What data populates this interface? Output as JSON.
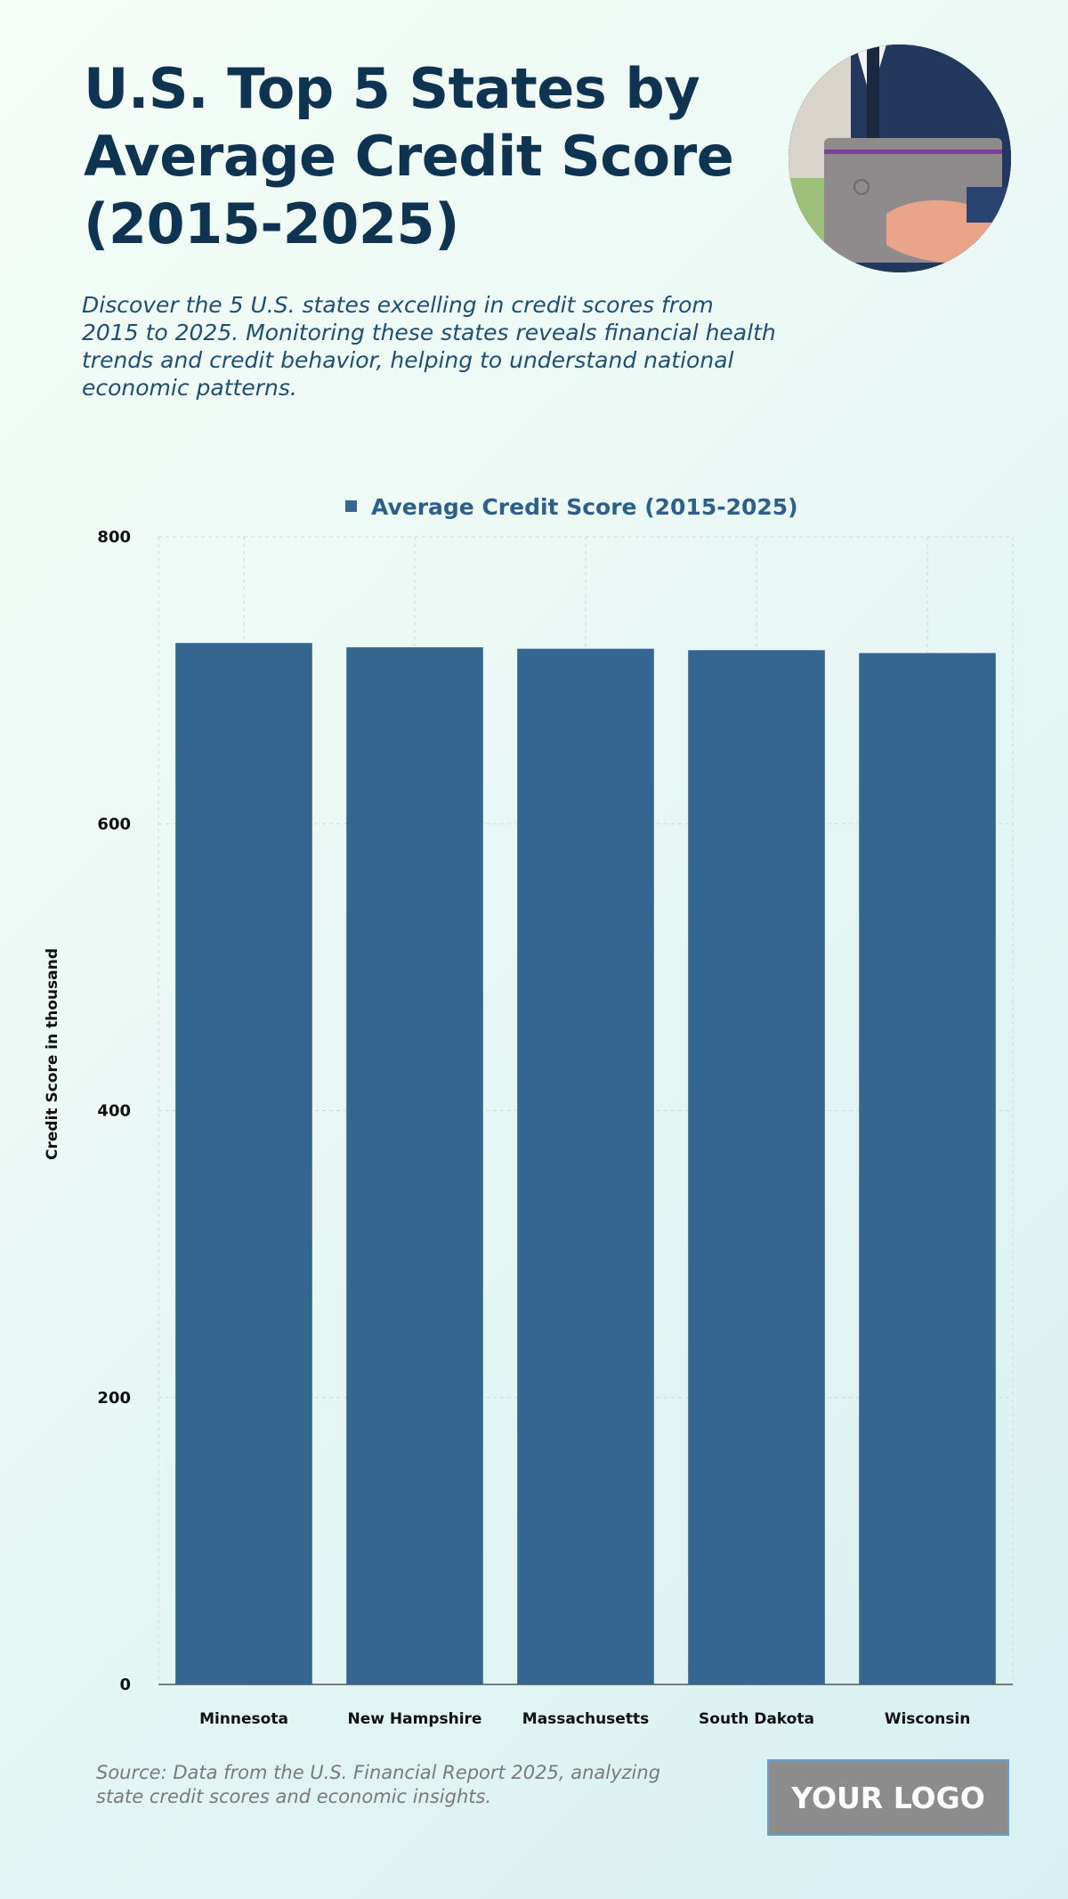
{
  "header": {
    "title": "U.S. Top 5 States by Average Credit Score (2015-2025)",
    "subtitle": "Discover the 5 U.S. states excelling in credit scores from 2015 to 2025. Monitoring these states reveals financial health trends and credit behavior, helping to understand national economic patterns."
  },
  "chart_data": {
    "type": "bar",
    "title": "",
    "legend": [
      "Average Credit Score (2015-2025)"
    ],
    "categories": [
      "Minnesota",
      "New Hampshire",
      "Massachusetts",
      "South Dakota",
      "Wisconsin"
    ],
    "series": [
      {
        "name": "Average Credit Score (2015-2025)",
        "values": [
          726,
          723,
          722,
          721,
          719
        ]
      }
    ],
    "xlabel": "",
    "ylabel": "Credit Score in thousand",
    "ylim": [
      0,
      800
    ],
    "yticks": [
      0,
      200,
      400,
      600,
      800
    ],
    "grid": true,
    "legend_position": "top-center",
    "colors": {
      "bar": "#35668f",
      "grid": "#c9dcdc",
      "axis": "#555555"
    }
  },
  "footer": {
    "source": "Source: Data from the U.S. Financial Report 2025, analyzing state credit scores and economic insights.",
    "logo": "YOUR LOGO"
  }
}
